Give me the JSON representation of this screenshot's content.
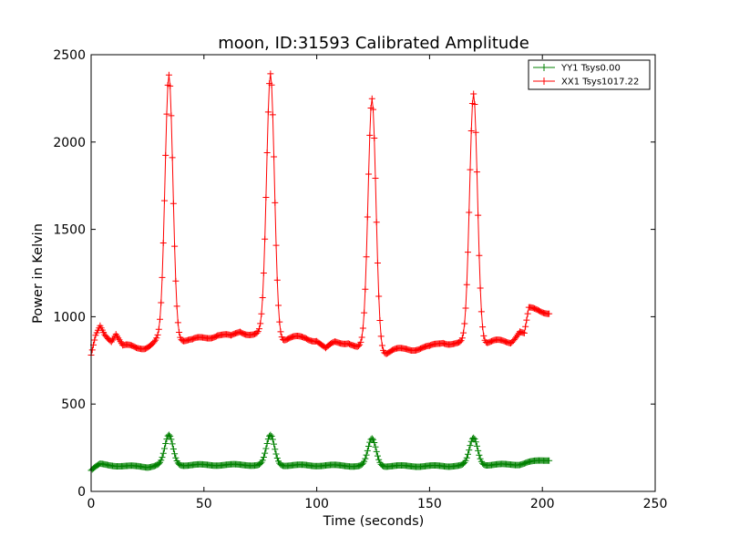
{
  "chart_data": {
    "type": "line",
    "title": "moon, ID:31593 Calibrated Amplitude",
    "xlabel": "Time (seconds)",
    "ylabel": "Power in Kelvin",
    "xlim": [
      0,
      250
    ],
    "ylim": [
      0,
      2500
    ],
    "xticks": [
      0,
      50,
      100,
      150,
      200,
      250
    ],
    "yticks": [
      0,
      500,
      1000,
      1500,
      2000,
      2500
    ],
    "grid": false,
    "legend_position": "top-right",
    "marker": "plus",
    "series": [
      {
        "name": "YY1 Tsys0.00",
        "color": "#008000",
        "baseline": [
          [
            0,
            120
          ],
          [
            2,
            140
          ],
          [
            4,
            155
          ],
          [
            8,
            150
          ],
          [
            15,
            145
          ],
          [
            25,
            140
          ],
          [
            29,
            150
          ],
          [
            68,
            152
          ],
          [
            74,
            150
          ],
          [
            112,
            148
          ],
          [
            118,
            145
          ],
          [
            158,
            145
          ],
          [
            162,
            148
          ],
          [
            190,
            155
          ],
          [
            194,
            168
          ],
          [
            203,
            180
          ]
        ],
        "peaks": [
          {
            "center": 34.5,
            "height": 320,
            "width": 1.8
          },
          {
            "center": 79.5,
            "height": 320,
            "width": 1.8
          },
          {
            "center": 124.5,
            "height": 300,
            "width": 1.8
          },
          {
            "center": 169.5,
            "height": 305,
            "width": 1.8
          }
        ]
      },
      {
        "name": "XX1 Tsys1017.22",
        "color": "#ff0000",
        "baseline": [
          [
            0,
            770
          ],
          [
            2,
            880
          ],
          [
            4,
            940
          ],
          [
            6,
            900
          ],
          [
            9,
            870
          ],
          [
            11,
            910
          ],
          [
            14,
            830
          ],
          [
            20,
            820
          ],
          [
            24,
            830
          ],
          [
            29,
            860
          ],
          [
            40,
            870
          ],
          [
            45,
            860
          ],
          [
            50,
            880
          ],
          [
            56,
            900
          ],
          [
            62,
            880
          ],
          [
            66,
            920
          ],
          [
            72,
            900
          ],
          [
            85,
            870
          ],
          [
            95,
            880
          ],
          [
            100,
            870
          ],
          [
            104,
            810
          ],
          [
            108,
            850
          ],
          [
            114,
            860
          ],
          [
            118,
            820
          ],
          [
            131,
            790
          ],
          [
            140,
            820
          ],
          [
            150,
            820
          ],
          [
            156,
            860
          ],
          [
            164,
            840
          ],
          [
            175,
            850
          ],
          [
            186,
            860
          ],
          [
            190,
            920
          ],
          [
            192,
            900
          ],
          [
            194,
            1040
          ],
          [
            203,
            1030
          ]
        ],
        "peaks": [
          {
            "center": 34.5,
            "height": 2380,
            "width": 1.75
          },
          {
            "center": 79.5,
            "height": 2390,
            "width": 1.75
          },
          {
            "center": 124.5,
            "height": 2250,
            "width": 1.75
          },
          {
            "center": 169.5,
            "height": 2280,
            "width": 1.75
          }
        ]
      }
    ]
  }
}
